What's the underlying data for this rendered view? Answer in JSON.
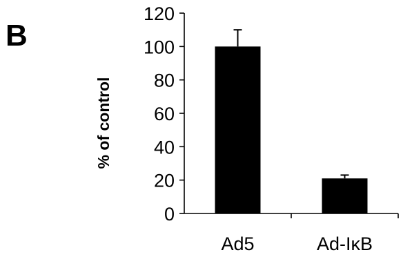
{
  "panel_label": "B",
  "chart_data": {
    "type": "bar",
    "categories": [
      "Ad5",
      "Ad-IκB"
    ],
    "values": [
      100,
      21
    ],
    "error": [
      10,
      2
    ],
    "title": "",
    "xlabel": "",
    "ylabel": "% of control",
    "ylim": [
      0,
      120
    ],
    "yticks": [
      0,
      20,
      40,
      60,
      80,
      100,
      120
    ],
    "grid": false,
    "bar_color": "#000000"
  }
}
